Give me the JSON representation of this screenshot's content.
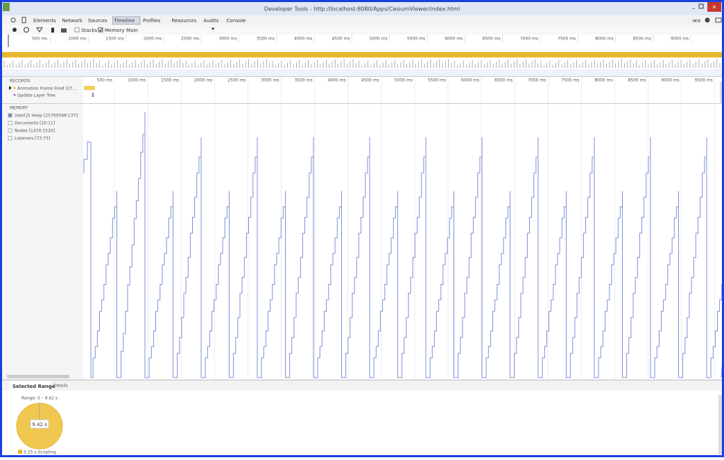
{
  "window": {
    "title": "Developer Tools - http://localhost:8080/Apps/CesiumViewer/index.html"
  },
  "tabs": [
    "Elements",
    "Network",
    "Sources",
    "Timeline",
    "Profiles",
    "Resources",
    "Audits",
    "Console"
  ],
  "toolbar": {
    "stacks": "Stacks",
    "memory": "Memory",
    "main": "Main"
  },
  "overview_ticks": [
    "500 ms",
    "1000 ms",
    "1500 ms",
    "2000 ms",
    "2500 ms",
    "3000 ms",
    "3500 ms",
    "4000 ms",
    "4500 ms",
    "5000 ms",
    "5500 ms",
    "6000 ms",
    "6500 ms",
    "7000 ms",
    "7500 ms",
    "8000 ms",
    "8500 ms",
    "9000 ms"
  ],
  "records": {
    "header": "RECORDS",
    "items": [
      "Animation Frame Fired (27...",
      "Update Layer Tree"
    ]
  },
  "timeline_ticks": [
    "500 ms",
    "1000 ms",
    "1500 ms",
    "2000 ms",
    "2500 ms",
    "3000 ms",
    "3500 ms",
    "4000 ms",
    "4500 ms",
    "5000 ms",
    "5500 ms",
    "6000 ms",
    "6500 ms",
    "7000 ms",
    "7500 ms",
    "8000 ms",
    "8500 ms",
    "9000 ms",
    "9500 ms"
  ],
  "memory": {
    "header": "MEMORY",
    "counters": [
      "Used JS Heap [25760568:1372",
      "Documents [10:11]",
      "Nodes [1470:1520]",
      "Listeners [73:73]"
    ]
  },
  "bottom": {
    "tabs": [
      "Selected Range",
      "Details"
    ],
    "range": "Range: 0 – 9.42 s",
    "pie_label": "9.42 s",
    "legend": "9.25 s Scripting"
  }
}
